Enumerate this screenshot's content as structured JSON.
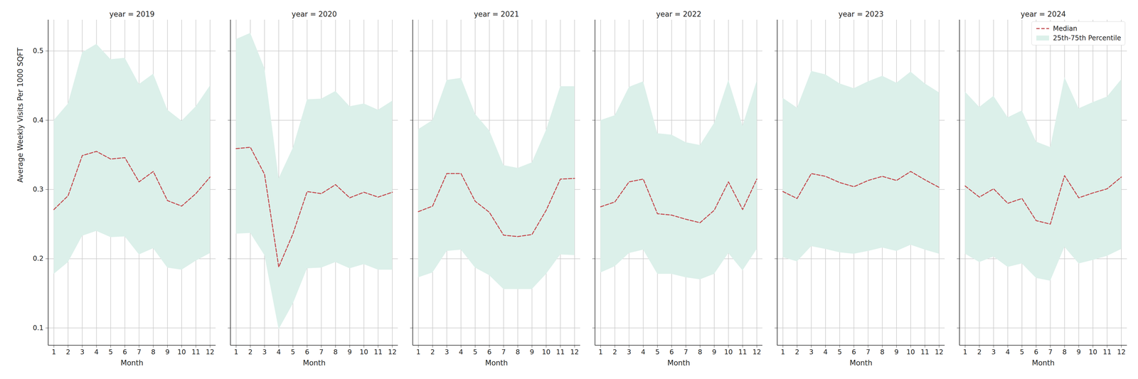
{
  "chart_data": [
    {
      "type": "line",
      "title": "year = 2019",
      "xlabel": "Month",
      "ylabel": "Average Weekly Visits Per 1000 SQFT",
      "x": [
        1,
        2,
        3,
        4,
        5,
        6,
        7,
        8,
        9,
        10,
        11,
        12
      ],
      "series": [
        {
          "name": "Median",
          "color": "#c44e52",
          "line_style": "dashed",
          "values": [
            0.271,
            0.291,
            0.349,
            0.355,
            0.344,
            0.346,
            0.311,
            0.326,
            0.284,
            0.276,
            0.294,
            0.318
          ]
        },
        {
          "name": "25th-75th Percentile",
          "type": "band",
          "color": "#dcf0ea",
          "lower": [
            0.178,
            0.195,
            0.233,
            0.24,
            0.231,
            0.232,
            0.206,
            0.215,
            0.187,
            0.184,
            0.197,
            0.208
          ],
          "upper": [
            0.4,
            0.424,
            0.498,
            0.51,
            0.488,
            0.49,
            0.452,
            0.467,
            0.415,
            0.399,
            0.42,
            0.45
          ]
        }
      ],
      "xlim": [
        0.6,
        12.4
      ],
      "xticks": [
        1,
        2,
        3,
        4,
        5,
        6,
        7,
        8,
        9,
        10,
        11,
        12
      ],
      "ylim": [
        0.075,
        0.545
      ],
      "yticks": [
        0.1,
        0.2,
        0.3,
        0.4,
        0.5
      ],
      "grid": true
    },
    {
      "type": "line",
      "title": "year = 2020",
      "xlabel": "Month",
      "x": [
        1,
        2,
        3,
        4,
        5,
        6,
        7,
        8,
        9,
        10,
        11,
        12
      ],
      "series": [
        {
          "name": "Median",
          "color": "#c44e52",
          "line_style": "dashed",
          "values": [
            0.359,
            0.361,
            0.322,
            0.188,
            0.236,
            0.297,
            0.294,
            0.307,
            0.288,
            0.296,
            0.289,
            0.296
          ]
        },
        {
          "name": "25th-75th Percentile",
          "type": "band",
          "color": "#dcf0ea",
          "lower": [
            0.236,
            0.237,
            0.205,
            0.098,
            0.135,
            0.186,
            0.187,
            0.195,
            0.186,
            0.192,
            0.184,
            0.184
          ],
          "upper": [
            0.517,
            0.526,
            0.475,
            0.316,
            0.36,
            0.43,
            0.431,
            0.442,
            0.42,
            0.424,
            0.415,
            0.428
          ]
        }
      ],
      "xlim": [
        0.6,
        12.4
      ],
      "xticks": [
        1,
        2,
        3,
        4,
        5,
        6,
        7,
        8,
        9,
        10,
        11,
        12
      ],
      "ylim": [
        0.075,
        0.545
      ],
      "yticks": [
        0.1,
        0.2,
        0.3,
        0.4,
        0.5
      ],
      "grid": true,
      "tick_labels": "x"
    },
    {
      "type": "line",
      "title": "year = 2021",
      "xlabel": "Month",
      "x": [
        1,
        2,
        3,
        4,
        5,
        6,
        7,
        8,
        9,
        10,
        11,
        12
      ],
      "series": [
        {
          "name": "Median",
          "color": "#c44e52",
          "line_style": "dashed",
          "values": [
            0.268,
            0.276,
            0.323,
            0.323,
            0.283,
            0.267,
            0.234,
            0.232,
            0.235,
            0.27,
            0.315,
            0.316
          ]
        },
        {
          "name": "25th-75th Percentile",
          "type": "band",
          "color": "#dcf0ea",
          "lower": [
            0.173,
            0.18,
            0.211,
            0.213,
            0.187,
            0.176,
            0.156,
            0.156,
            0.156,
            0.178,
            0.206,
            0.205
          ],
          "upper": [
            0.387,
            0.4,
            0.458,
            0.461,
            0.409,
            0.385,
            0.335,
            0.331,
            0.339,
            0.386,
            0.449,
            0.449
          ]
        }
      ],
      "xlim": [
        0.6,
        12.4
      ],
      "xticks": [
        1,
        2,
        3,
        4,
        5,
        6,
        7,
        8,
        9,
        10,
        11,
        12
      ],
      "ylim": [
        0.075,
        0.545
      ],
      "yticks": [
        0.1,
        0.2,
        0.3,
        0.4,
        0.5
      ],
      "grid": true,
      "tick_labels": "x"
    },
    {
      "type": "line",
      "title": "year = 2022",
      "xlabel": "Month",
      "x": [
        1,
        2,
        3,
        4,
        5,
        6,
        7,
        8,
        9,
        10,
        11,
        12
      ],
      "series": [
        {
          "name": "Median",
          "color": "#c44e52",
          "line_style": "dashed",
          "values": [
            0.275,
            0.282,
            0.311,
            0.315,
            0.265,
            0.263,
            0.257,
            0.252,
            0.27,
            0.311,
            0.271,
            0.315
          ]
        },
        {
          "name": "25th-75th Percentile",
          "type": "band",
          "color": "#dcf0ea",
          "lower": [
            0.18,
            0.189,
            0.208,
            0.213,
            0.178,
            0.178,
            0.173,
            0.17,
            0.178,
            0.208,
            0.183,
            0.214
          ],
          "upper": [
            0.4,
            0.407,
            0.448,
            0.456,
            0.381,
            0.379,
            0.368,
            0.364,
            0.396,
            0.458,
            0.392,
            0.457
          ]
        }
      ],
      "xlim": [
        0.6,
        12.4
      ],
      "xticks": [
        1,
        2,
        3,
        4,
        5,
        6,
        7,
        8,
        9,
        10,
        11,
        12
      ],
      "ylim": [
        0.075,
        0.545
      ],
      "yticks": [
        0.1,
        0.2,
        0.3,
        0.4,
        0.5
      ],
      "grid": true,
      "tick_labels": "x"
    },
    {
      "type": "line",
      "title": "year = 2023",
      "xlabel": "Month",
      "x": [
        1,
        2,
        3,
        4,
        5,
        6,
        7,
        8,
        9,
        10,
        11,
        12
      ],
      "series": [
        {
          "name": "Median",
          "color": "#c44e52",
          "line_style": "dashed",
          "values": [
            0.297,
            0.287,
            0.323,
            0.319,
            0.31,
            0.304,
            0.313,
            0.319,
            0.313,
            0.326,
            0.314,
            0.303
          ]
        },
        {
          "name": "25th-75th Percentile",
          "type": "band",
          "color": "#dcf0ea",
          "lower": [
            0.202,
            0.196,
            0.218,
            0.214,
            0.209,
            0.207,
            0.211,
            0.216,
            0.211,
            0.22,
            0.213,
            0.207
          ],
          "upper": [
            0.432,
            0.418,
            0.471,
            0.466,
            0.453,
            0.446,
            0.456,
            0.464,
            0.454,
            0.47,
            0.453,
            0.44
          ]
        }
      ],
      "xlim": [
        0.6,
        12.4
      ],
      "xticks": [
        1,
        2,
        3,
        4,
        5,
        6,
        7,
        8,
        9,
        10,
        11,
        12
      ],
      "ylim": [
        0.075,
        0.545
      ],
      "yticks": [
        0.1,
        0.2,
        0.3,
        0.4,
        0.5
      ],
      "grid": true,
      "tick_labels": "x"
    },
    {
      "type": "line",
      "title": "year = 2024",
      "xlabel": "Month",
      "x": [
        1,
        2,
        3,
        4,
        5,
        6,
        7,
        8,
        9,
        10,
        11,
        12
      ],
      "series": [
        {
          "name": "Median",
          "color": "#c44e52",
          "line_style": "dashed",
          "values": [
            0.305,
            0.289,
            0.301,
            0.28,
            0.287,
            0.255,
            0.25,
            0.32,
            0.288,
            0.295,
            0.301,
            0.318
          ]
        },
        {
          "name": "25th-75th Percentile",
          "type": "band",
          "color": "#dcf0ea",
          "lower": [
            0.207,
            0.195,
            0.203,
            0.188,
            0.193,
            0.172,
            0.168,
            0.217,
            0.193,
            0.198,
            0.204,
            0.214
          ],
          "upper": [
            0.441,
            0.419,
            0.435,
            0.404,
            0.414,
            0.369,
            0.361,
            0.462,
            0.417,
            0.426,
            0.434,
            0.459
          ]
        }
      ],
      "xlim": [
        0.6,
        12.4
      ],
      "xticks": [
        1,
        2,
        3,
        4,
        5,
        6,
        7,
        8,
        9,
        10,
        11,
        12
      ],
      "ylim": [
        0.075,
        0.545
      ],
      "yticks": [
        0.1,
        0.2,
        0.3,
        0.4,
        0.5
      ],
      "grid": true,
      "tick_labels": "x",
      "legend": "upper right"
    }
  ]
}
